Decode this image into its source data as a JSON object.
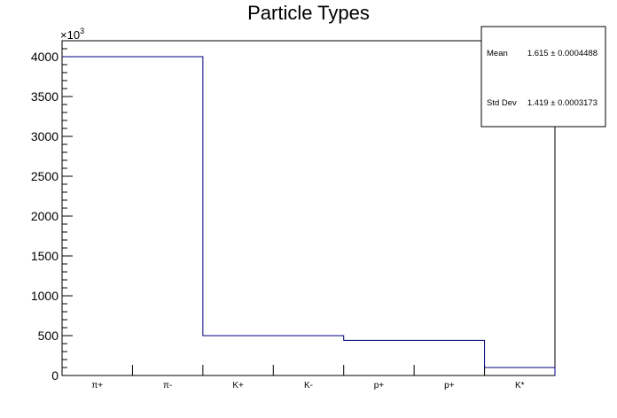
{
  "chart_data": {
    "type": "bar",
    "title": "Particle Types",
    "categories": [
      "π+",
      "π-",
      "K+",
      "K-",
      "p+",
      "p+",
      "K*"
    ],
    "values": [
      4000,
      4000,
      500,
      500,
      440,
      440,
      100
    ],
    "ylim": [
      0,
      4200
    ],
    "y_exponent_label": "×10",
    "y_exponent_power": "3",
    "y_ticks": [
      0,
      500,
      1000,
      1500,
      2000,
      2500,
      3000,
      3500,
      4000
    ],
    "line_color": "#000080",
    "stats_box": {
      "mean_label": "Mean",
      "mean_value": "1.615 ± 0.0004488",
      "std_label": "Std Dev",
      "std_value": "1.419 ± 0.0003173"
    }
  }
}
